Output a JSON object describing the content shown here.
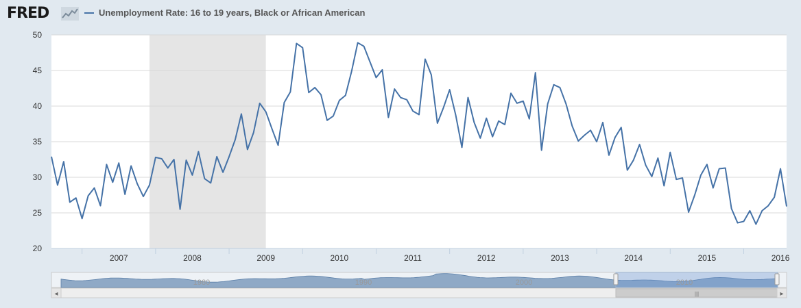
{
  "header": {
    "logo_text": "FRED",
    "logo_icon": "line-chart-icon",
    "series_title": "Unemployment Rate: 16 to 19 years, Black or African American"
  },
  "colors": {
    "series": "#4572a7",
    "recession": "#e5e5e5",
    "background": "#e1e9f0",
    "plot": "#ffffff",
    "grid": "#d8d8d8"
  },
  "chart_data": {
    "type": "line",
    "title": "",
    "xlabel": "",
    "ylabel": "",
    "ylim": [
      20,
      50
    ],
    "yticks": [
      20,
      25,
      30,
      35,
      40,
      45,
      50
    ],
    "xlim": [
      "2006-08",
      "2016-07"
    ],
    "xticks": [
      "2007",
      "2008",
      "2009",
      "2010",
      "2011",
      "2012",
      "2013",
      "2014",
      "2015",
      "2016"
    ],
    "grid": true,
    "legend": "top",
    "recession": {
      "start": "2007-12",
      "end": "2009-06"
    },
    "series": [
      {
        "name": "Unemployment Rate: 16 to 19 years, Black or African American",
        "points": [
          [
            "2006-08",
            32.9
          ],
          [
            "2006-09",
            28.9
          ],
          [
            "2006-10",
            32.2
          ],
          [
            "2006-11",
            26.5
          ],
          [
            "2006-12",
            27.1
          ],
          [
            "2007-01",
            24.2
          ],
          [
            "2007-02",
            27.4
          ],
          [
            "2007-03",
            28.5
          ],
          [
            "2007-04",
            26.0
          ],
          [
            "2007-05",
            31.8
          ],
          [
            "2007-06",
            29.3
          ],
          [
            "2007-07",
            32.0
          ],
          [
            "2007-08",
            27.6
          ],
          [
            "2007-09",
            31.6
          ],
          [
            "2007-10",
            29.1
          ],
          [
            "2007-11",
            27.3
          ],
          [
            "2007-12",
            28.9
          ],
          [
            "2008-01",
            32.8
          ],
          [
            "2008-02",
            32.6
          ],
          [
            "2008-03",
            31.3
          ],
          [
            "2008-04",
            32.5
          ],
          [
            "2008-05",
            25.5
          ],
          [
            "2008-06",
            32.4
          ],
          [
            "2008-07",
            30.3
          ],
          [
            "2008-08",
            33.6
          ],
          [
            "2008-09",
            29.8
          ],
          [
            "2008-10",
            29.2
          ],
          [
            "2008-11",
            32.9
          ],
          [
            "2008-12",
            30.7
          ],
          [
            "2009-01",
            32.9
          ],
          [
            "2009-02",
            35.3
          ],
          [
            "2009-03",
            38.9
          ],
          [
            "2009-04",
            33.9
          ],
          [
            "2009-05",
            36.3
          ],
          [
            "2009-06",
            40.4
          ],
          [
            "2009-07",
            39.2
          ],
          [
            "2009-08",
            36.8
          ],
          [
            "2009-09",
            34.5
          ],
          [
            "2009-10",
            40.5
          ],
          [
            "2009-11",
            42.0
          ],
          [
            "2009-12",
            48.8
          ],
          [
            "2010-01",
            48.2
          ],
          [
            "2010-02",
            41.9
          ],
          [
            "2010-03",
            42.6
          ],
          [
            "2010-04",
            41.6
          ],
          [
            "2010-05",
            38.0
          ],
          [
            "2010-06",
            38.6
          ],
          [
            "2010-07",
            40.8
          ],
          [
            "2010-08",
            41.5
          ],
          [
            "2010-09",
            44.9
          ],
          [
            "2010-10",
            48.9
          ],
          [
            "2010-11",
            48.4
          ],
          [
            "2010-12",
            46.2
          ],
          [
            "2011-01",
            44.0
          ],
          [
            "2011-02",
            45.1
          ],
          [
            "2011-03",
            38.4
          ],
          [
            "2011-04",
            42.4
          ],
          [
            "2011-05",
            41.2
          ],
          [
            "2011-06",
            40.9
          ],
          [
            "2011-07",
            39.3
          ],
          [
            "2011-08",
            38.8
          ],
          [
            "2011-09",
            46.6
          ],
          [
            "2011-10",
            44.4
          ],
          [
            "2011-11",
            37.6
          ],
          [
            "2011-12",
            39.8
          ],
          [
            "2012-01",
            42.3
          ],
          [
            "2012-02",
            38.7
          ],
          [
            "2012-03",
            34.2
          ],
          [
            "2012-04",
            41.2
          ],
          [
            "2012-05",
            37.7
          ],
          [
            "2012-06",
            35.5
          ],
          [
            "2012-07",
            38.3
          ],
          [
            "2012-08",
            35.7
          ],
          [
            "2012-09",
            37.9
          ],
          [
            "2012-10",
            37.4
          ],
          [
            "2012-11",
            41.8
          ],
          [
            "2012-12",
            40.4
          ],
          [
            "2013-01",
            40.7
          ],
          [
            "2013-02",
            38.2
          ],
          [
            "2013-03",
            44.7
          ],
          [
            "2013-04",
            33.8
          ],
          [
            "2013-05",
            40.3
          ],
          [
            "2013-06",
            43.0
          ],
          [
            "2013-07",
            42.6
          ],
          [
            "2013-08",
            40.3
          ],
          [
            "2013-09",
            37.2
          ],
          [
            "2013-10",
            35.1
          ],
          [
            "2013-11",
            35.9
          ],
          [
            "2013-12",
            36.6
          ],
          [
            "2014-01",
            35.0
          ],
          [
            "2014-02",
            37.7
          ],
          [
            "2014-03",
            33.1
          ],
          [
            "2014-04",
            35.6
          ],
          [
            "2014-05",
            37.0
          ],
          [
            "2014-06",
            31.0
          ],
          [
            "2014-07",
            32.4
          ],
          [
            "2014-08",
            34.6
          ],
          [
            "2014-09",
            31.7
          ],
          [
            "2014-10",
            30.1
          ],
          [
            "2014-11",
            32.7
          ],
          [
            "2014-12",
            28.8
          ],
          [
            "2015-01",
            33.5
          ],
          [
            "2015-02",
            29.7
          ],
          [
            "2015-03",
            29.9
          ],
          [
            "2015-04",
            25.1
          ],
          [
            "2015-05",
            27.5
          ],
          [
            "2015-06",
            30.3
          ],
          [
            "2015-07",
            31.8
          ],
          [
            "2015-08",
            28.5
          ],
          [
            "2015-09",
            31.2
          ],
          [
            "2015-10",
            31.3
          ],
          [
            "2015-11",
            25.6
          ],
          [
            "2015-12",
            23.6
          ],
          [
            "2016-01",
            23.8
          ],
          [
            "2016-02",
            25.3
          ],
          [
            "2016-03",
            23.4
          ],
          [
            "2016-04",
            25.3
          ],
          [
            "2016-05",
            26.0
          ],
          [
            "2016-06",
            27.2
          ],
          [
            "2016-07",
            31.2
          ],
          [
            "2016-08",
            25.9
          ]
        ]
      }
    ]
  },
  "navigator": {
    "labels": [
      "1980",
      "1990",
      "2000",
      "2010"
    ],
    "scroll_left_arrow": "◂",
    "scroll_right_arrow": "▸",
    "scroll_grip": "|||"
  }
}
